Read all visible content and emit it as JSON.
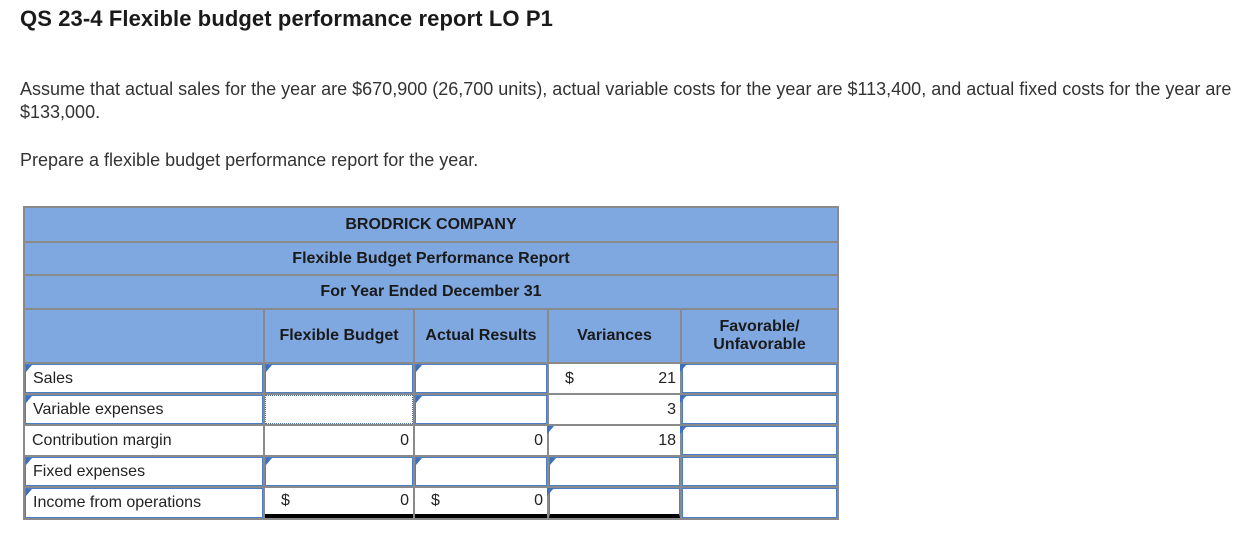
{
  "title": "QS 23-4 Flexible budget performance report LO P1",
  "instructions": {
    "line1": "Assume that actual sales for the year are $670,900 (26,700 units), actual variable costs for the year are $113,400, and actual fixed costs for the year are $133,000.",
    "line2": "Prepare a flexible budget performance report for the year."
  },
  "report": {
    "company": "BRODRICK COMPANY",
    "report_title": "Flexible Budget Performance Report",
    "period": "For Year Ended December 31",
    "columns": {
      "flexible_budget": "Flexible Budget",
      "actual_results": "Actual Results",
      "variances": "Variances",
      "fav_unfav": "Favorable/ Unfavorable"
    },
    "currency_symbol": "$",
    "rows": [
      {
        "label": "Sales",
        "flexible": "",
        "actual": "",
        "variance": "21",
        "fav": ""
      },
      {
        "label": "Variable expenses",
        "flexible": "",
        "actual": "",
        "variance": "3",
        "fav": ""
      },
      {
        "label": "Contribution margin",
        "flexible": "0",
        "actual": "0",
        "variance": "18",
        "fav": ""
      },
      {
        "label": "Fixed expenses",
        "flexible": "",
        "actual": "",
        "variance": "",
        "fav": ""
      },
      {
        "label": "Income from operations",
        "flexible": "0",
        "actual": "0",
        "variance": "",
        "fav": ""
      }
    ]
  },
  "colors": {
    "header_bg": "#7fa7e0",
    "input_border": "#4a7fc8",
    "flag": "#3e70c0"
  }
}
